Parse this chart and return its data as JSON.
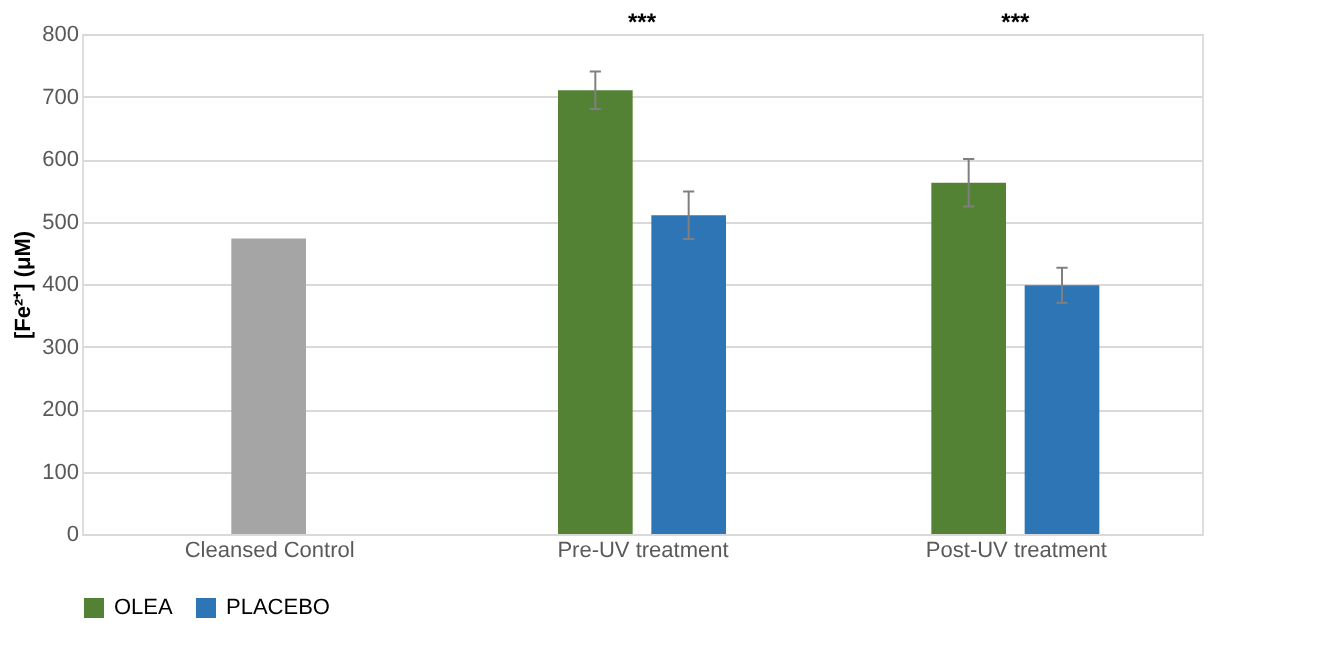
{
  "chart_data": {
    "type": "bar",
    "ylabel": "[Fe²⁺] (μM)",
    "categories": [
      "Cleansed Control",
      "Pre-UV treatment",
      "Post-UV treatment"
    ],
    "series": [
      {
        "color": "#a5a5a5",
        "values": [
          473,
          null,
          null
        ]
      },
      {
        "name": "OLEA",
        "color": "#548235",
        "values": [
          null,
          710,
          562
        ],
        "errors": [
          null,
          30,
          38
        ]
      },
      {
        "name": "PLACEBO",
        "color": "#2e75b6",
        "values": [
          null,
          510,
          398
        ],
        "errors": [
          null,
          38,
          28
        ]
      }
    ],
    "ylim": [
      0,
      800
    ],
    "yticks": [
      0,
      100,
      200,
      300,
      400,
      500,
      600,
      700,
      800
    ],
    "grid": "y",
    "legend": "bottom",
    "annotations": [
      "***",
      "***"
    ]
  }
}
